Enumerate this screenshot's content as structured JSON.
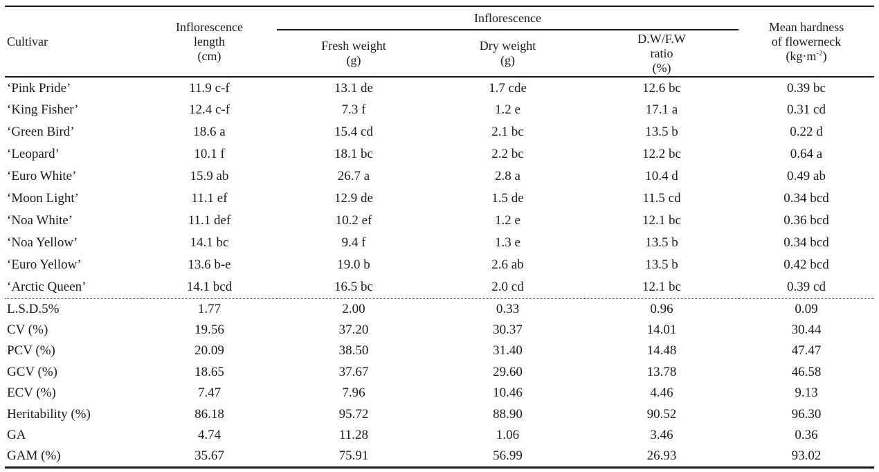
{
  "table": {
    "column_keys": [
      "label",
      "length",
      "fresh",
      "dry",
      "ratio",
      "hardness"
    ],
    "header": {
      "cultivar": "Cultivar",
      "inflorescence_length": {
        "line1": "Inflorescence",
        "line2": "length",
        "line3": "(cm)"
      },
      "inflorescence_group": "Inflorescence",
      "fresh_weight": {
        "line1": "Fresh weight",
        "line2": "(g)"
      },
      "dry_weight": {
        "line1": "Dry weight",
        "line2": "(g)"
      },
      "dwfw_ratio": {
        "line1": "D.W/F.W",
        "line2": "ratio",
        "line3": "(%)"
      },
      "mean_hardness": {
        "line1": "Mean hardness",
        "line2": "of flowerneck",
        "unit_prefix": "(kg·m",
        "unit_sup": "-2",
        "unit_suffix": ")"
      }
    },
    "cultivar_rows": [
      {
        "label": "‘Pink Pride’",
        "length": "11.9 c-f",
        "fresh": "13.1 de",
        "dry": "1.7 cde",
        "ratio": "12.6 bc",
        "hardness": "0.39 bc"
      },
      {
        "label": "‘King Fisher’",
        "length": "12.4 c-f",
        "fresh": "7.3 f",
        "dry": "1.2 e",
        "ratio": "17.1 a",
        "hardness": "0.31 cd"
      },
      {
        "label": "‘Green Bird’",
        "length": "18.6 a",
        "fresh": "15.4 cd",
        "dry": "2.1 bc",
        "ratio": "13.5 b",
        "hardness": "0.22 d"
      },
      {
        "label": "‘Leopard’",
        "length": "10.1 f",
        "fresh": "18.1 bc",
        "dry": "2.2 bc",
        "ratio": "12.2 bc",
        "hardness": "0.64 a"
      },
      {
        "label": "‘Euro White’",
        "length": "15.9 ab",
        "fresh": "26.7 a",
        "dry": "2.8 a",
        "ratio": "10.4 d",
        "hardness": "0.49 ab"
      },
      {
        "label": "‘Moon Light’",
        "length": "11.1 ef",
        "fresh": "12.9 de",
        "dry": "1.5 de",
        "ratio": "11.5 cd",
        "hardness": "0.34 bcd"
      },
      {
        "label": "‘Noa White’",
        "length": "11.1 def",
        "fresh": "10.2 ef",
        "dry": "1.2 e",
        "ratio": "12.1 bc",
        "hardness": "0.36 bcd"
      },
      {
        "label": "‘Noa Yellow’",
        "length": "14.1 bc",
        "fresh": "9.4 f",
        "dry": "1.3 e",
        "ratio": "13.5 b",
        "hardness": "0.34 bcd"
      },
      {
        "label": "‘Euro Yellow’",
        "length": "13.6 b-e",
        "fresh": "19.0 b",
        "dry": "2.6 ab",
        "ratio": "13.5 b",
        "hardness": "0.42 bcd"
      },
      {
        "label": "‘Arctic Queen’",
        "length": "14.1 bcd",
        "fresh": "16.5 bc",
        "dry": "2.0 cd",
        "ratio": "12.1 bc",
        "hardness": "0.39 cd"
      }
    ],
    "stat_rows": [
      {
        "label": "L.S.D.5%",
        "length": "1.77",
        "fresh": "2.00",
        "dry": "0.33",
        "ratio": "0.96",
        "hardness": "0.09"
      },
      {
        "label": "CV (%)",
        "length": "19.56",
        "fresh": "37.20",
        "dry": "30.37",
        "ratio": "14.01",
        "hardness": "30.44"
      },
      {
        "label": "PCV (%)",
        "length": "20.09",
        "fresh": "38.50",
        "dry": "31.40",
        "ratio": "14.48",
        "hardness": "47.47"
      },
      {
        "label": "GCV (%)",
        "length": "18.65",
        "fresh": "37.67",
        "dry": "29.60",
        "ratio": "13.78",
        "hardness": "46.58"
      },
      {
        "label": "ECV (%)",
        "length": "7.47",
        "fresh": "7.96",
        "dry": "10.46",
        "ratio": "4.46",
        "hardness": "9.13"
      },
      {
        "label": "Heritability (%)",
        "length": "86.18",
        "fresh": "95.72",
        "dry": "88.90",
        "ratio": "90.52",
        "hardness": "96.30"
      },
      {
        "label": "GA",
        "length": "4.74",
        "fresh": "11.28",
        "dry": "1.06",
        "ratio": "3.46",
        "hardness": "0.36"
      },
      {
        "label": "GAM (%)",
        "length": "35.67",
        "fresh": "75.91",
        "dry": "56.99",
        "ratio": "26.93",
        "hardness": "93.02"
      }
    ]
  }
}
